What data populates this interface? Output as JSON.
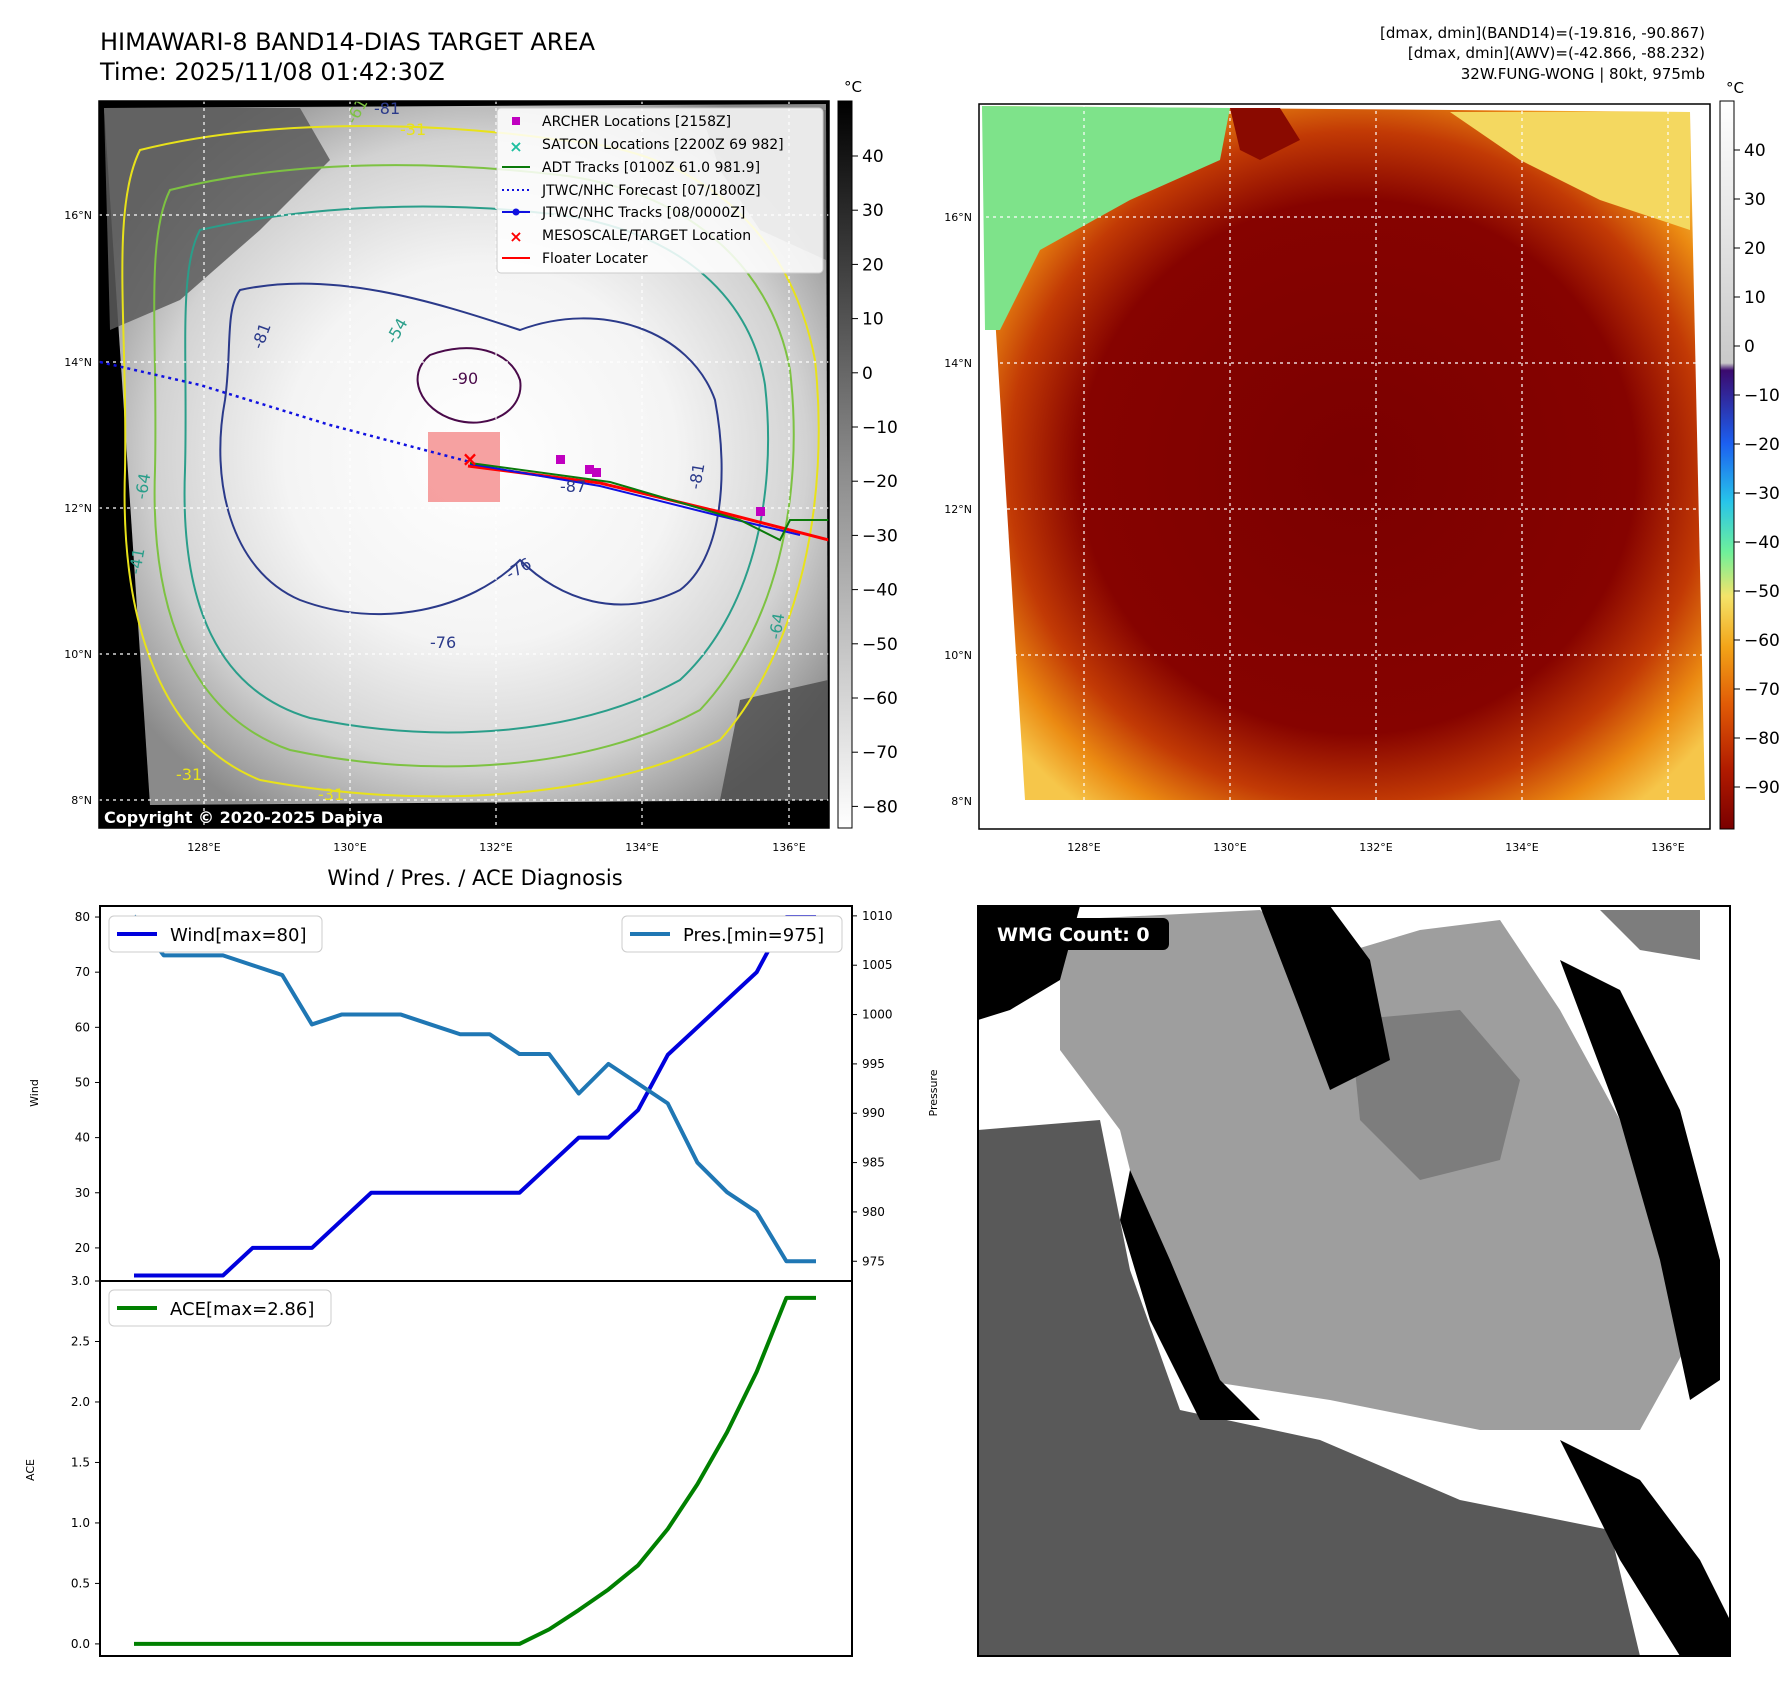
{
  "ir_panel": {
    "title_line1": "HIMAWARI-8 BAND14-DIAS TARGET AREA",
    "title_line2": "Time: 2025/11/08 01:42:30Z",
    "colorbar_unit": "°C",
    "colorbar_ticks": [
      "40",
      "30",
      "20",
      "10",
      "0",
      "−10",
      "−20",
      "−30",
      "−40",
      "−50",
      "−60",
      "−70",
      "−80"
    ],
    "copyright": "Copyright © 2020-2025 Dapiya",
    "legend": [
      {
        "label": "ARCHER Locations [2158Z]",
        "color": "#c000c0"
      },
      {
        "label": "SATCON Locations [2200Z 69 982]",
        "color": "#1fbfa0"
      },
      {
        "label": "ADT Tracks [0100Z 61.0 981.9]",
        "color": "#0a7a0a"
      },
      {
        "label": "JTWC/NHC Forecast [07/1800Z]",
        "color": "#1010e0"
      },
      {
        "label": "JTWC/NHC Tracks [08/0000Z]",
        "color": "#1010e0"
      },
      {
        "label": "MESOSCALE/TARGET Location",
        "color": "#ff0000"
      },
      {
        "label": "Floater Locater",
        "color": "#ff0000"
      }
    ],
    "contour_labels": [
      "-90",
      "-81",
      "-87",
      "-81",
      "-76",
      "-76",
      "-64",
      "-64",
      "-54",
      "-41",
      "-31",
      "-31",
      "-31",
      "-61",
      "-81"
    ]
  },
  "awv_panel": {
    "header_line1": "[dmax, dmin](BAND14)=(-19.816, -90.867)",
    "header_line2": "[dmax, dmin](AWV)=(-42.866, -88.232)",
    "header_line3": "32W.FUNG-WONG | 80kt, 975mb",
    "colorbar_unit": "°C",
    "colorbar_ticks": [
      "40",
      "30",
      "20",
      "10",
      "0",
      "−10",
      "−20",
      "−30",
      "−40",
      "−50",
      "−60",
      "−70",
      "−80",
      "−90"
    ]
  },
  "map_axes": {
    "lat_labels": [
      "16°N",
      "14°N",
      "12°N",
      "10°N",
      "8°N"
    ],
    "lon_labels": [
      "128°E",
      "130°E",
      "132°E",
      "134°E",
      "136°E"
    ]
  },
  "wmg_panel": {
    "badge": "WMG Count: 0"
  },
  "colors": {
    "wind": "#0000dd",
    "pressure": "#1f77b4",
    "ace": "#008000",
    "target_box": "#f48a8a"
  },
  "chart_data": [
    {
      "type": "line",
      "title": "Wind / Pres. / ACE Diagnosis",
      "ylabel": "Wind",
      "ylabel_right": "Pressure",
      "ylim": [
        14,
        82
      ],
      "ylim_right": [
        973,
        1011
      ],
      "yticks": [
        20,
        30,
        40,
        50,
        60,
        70,
        80
      ],
      "yticks_right": [
        975,
        980,
        985,
        990,
        995,
        1000,
        1005,
        1010
      ],
      "x": [
        0,
        1,
        2,
        3,
        4,
        5,
        6,
        7,
        8,
        9,
        10,
        11,
        12,
        13,
        14,
        15,
        16,
        17,
        18,
        19,
        20,
        21,
        22,
        23
      ],
      "series": [
        {
          "name": "Wind[max=80]",
          "axis": "left",
          "values": [
            15,
            15,
            15,
            15,
            20,
            20,
            20,
            25,
            30,
            30,
            30,
            30,
            30,
            30,
            35,
            40,
            40,
            45,
            55,
            60,
            65,
            70,
            80,
            80
          ]
        },
        {
          "name": "Pres.[min=975]",
          "axis": "right",
          "values": [
            1010,
            1006,
            1006,
            1006,
            1005,
            1004,
            999,
            1000,
            1000,
            1000,
            999,
            998,
            998,
            996,
            996,
            992,
            995,
            993,
            991,
            985,
            982,
            980,
            975,
            975
          ]
        }
      ],
      "legend": [
        "Wind[max=80]",
        "Pres.[min=975]"
      ]
    },
    {
      "type": "line",
      "ylabel": "ACE",
      "ylim": [
        -0.1,
        3.0
      ],
      "yticks": [
        0.0,
        0.5,
        1.0,
        1.5,
        2.0,
        2.5,
        3.0
      ],
      "ytick_labels": [
        "0.0",
        "0.5",
        "1.0",
        "1.5",
        "2.0",
        "2.5",
        "3.0"
      ],
      "x": [
        0,
        1,
        2,
        3,
        4,
        5,
        6,
        7,
        8,
        9,
        10,
        11,
        12,
        13,
        14,
        15,
        16,
        17,
        18,
        19,
        20,
        21,
        22,
        23
      ],
      "series": [
        {
          "name": "ACE[max=2.86]",
          "values": [
            0,
            0,
            0,
            0,
            0,
            0,
            0,
            0,
            0,
            0,
            0,
            0,
            0,
            0,
            0.12,
            0.28,
            0.45,
            0.65,
            0.95,
            1.32,
            1.75,
            2.25,
            2.86,
            2.86
          ]
        }
      ],
      "legend": [
        "ACE[max=2.86]"
      ]
    }
  ]
}
